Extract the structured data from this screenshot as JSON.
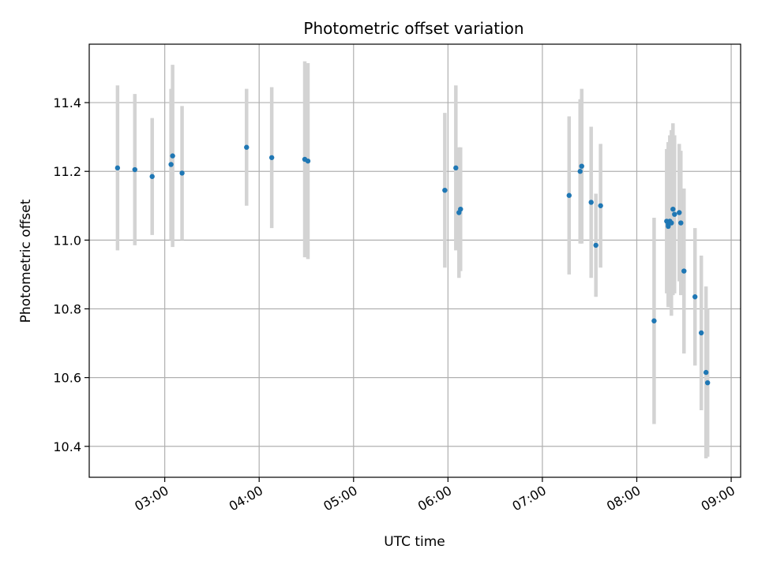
{
  "chart_data": {
    "type": "scatter",
    "title": "Photometric offset variation",
    "xlabel": "UTC time",
    "ylabel": "Photometric offset",
    "x_ticks": [
      "03:00",
      "04:00",
      "05:00",
      "06:00",
      "07:00",
      "08:00",
      "09:00"
    ],
    "y_ticks": [
      "10.4",
      "10.6",
      "10.8",
      "11.0",
      "11.2",
      "11.4"
    ],
    "xlim": [
      "02:12",
      "09:06"
    ],
    "ylim": [
      10.31,
      11.57
    ],
    "grid": true,
    "colors": {
      "points": "#1f77b4",
      "errorbars": "#d3d3d3",
      "grid": "#b0b0b0"
    },
    "points": [
      {
        "t": "02:30",
        "y": 11.21,
        "err": 0.24
      },
      {
        "t": "02:41",
        "y": 11.205,
        "err": 0.22
      },
      {
        "t": "02:52",
        "y": 11.185,
        "err": 0.17
      },
      {
        "t": "03:04",
        "y": 11.22,
        "err": 0.22
      },
      {
        "t": "03:05",
        "y": 11.245,
        "err": 0.265
      },
      {
        "t": "03:11",
        "y": 11.195,
        "err": 0.195
      },
      {
        "t": "03:52",
        "y": 11.27,
        "err": 0.17
      },
      {
        "t": "04:08",
        "y": 11.24,
        "err": 0.205
      },
      {
        "t": "04:29",
        "y": 11.235,
        "err": 0.285
      },
      {
        "t": "04:31",
        "y": 11.23,
        "err": 0.285
      },
      {
        "t": "05:58",
        "y": 11.145,
        "err": 0.225
      },
      {
        "t": "06:05",
        "y": 11.21,
        "err": 0.24
      },
      {
        "t": "06:07",
        "y": 11.08,
        "err": 0.19
      },
      {
        "t": "06:08",
        "y": 11.09,
        "err": 0.18
      },
      {
        "t": "07:17",
        "y": 11.13,
        "err": 0.23
      },
      {
        "t": "07:24",
        "y": 11.2,
        "err": 0.21
      },
      {
        "t": "07:25",
        "y": 11.215,
        "err": 0.225
      },
      {
        "t": "07:31",
        "y": 11.11,
        "err": 0.22
      },
      {
        "t": "07:34",
        "y": 10.985,
        "err": 0.15
      },
      {
        "t": "07:37",
        "y": 11.1,
        "err": 0.18
      },
      {
        "t": "08:11",
        "y": 10.765,
        "err": 0.3
      },
      {
        "t": "08:19",
        "y": 11.055,
        "err": 0.21
      },
      {
        "t": "08:20",
        "y": 11.04,
        "err": 0.23
      },
      {
        "t": "08:20",
        "y": 11.045,
        "err": 0.24
      },
      {
        "t": "08:21",
        "y": 11.055,
        "err": 0.25
      },
      {
        "t": "08:22",
        "y": 11.05,
        "err": 0.27
      },
      {
        "t": "08:23",
        "y": 11.09,
        "err": 0.25
      },
      {
        "t": "08:24",
        "y": 11.075,
        "err": 0.23
      },
      {
        "t": "08:27",
        "y": 11.08,
        "err": 0.2
      },
      {
        "t": "08:28",
        "y": 11.05,
        "err": 0.21
      },
      {
        "t": "08:30",
        "y": 10.91,
        "err": 0.24
      },
      {
        "t": "08:37",
        "y": 10.835,
        "err": 0.2
      },
      {
        "t": "08:41",
        "y": 10.73,
        "err": 0.225
      },
      {
        "t": "08:44",
        "y": 10.615,
        "err": 0.25
      },
      {
        "t": "08:45",
        "y": 10.585,
        "err": 0.215
      }
    ]
  }
}
